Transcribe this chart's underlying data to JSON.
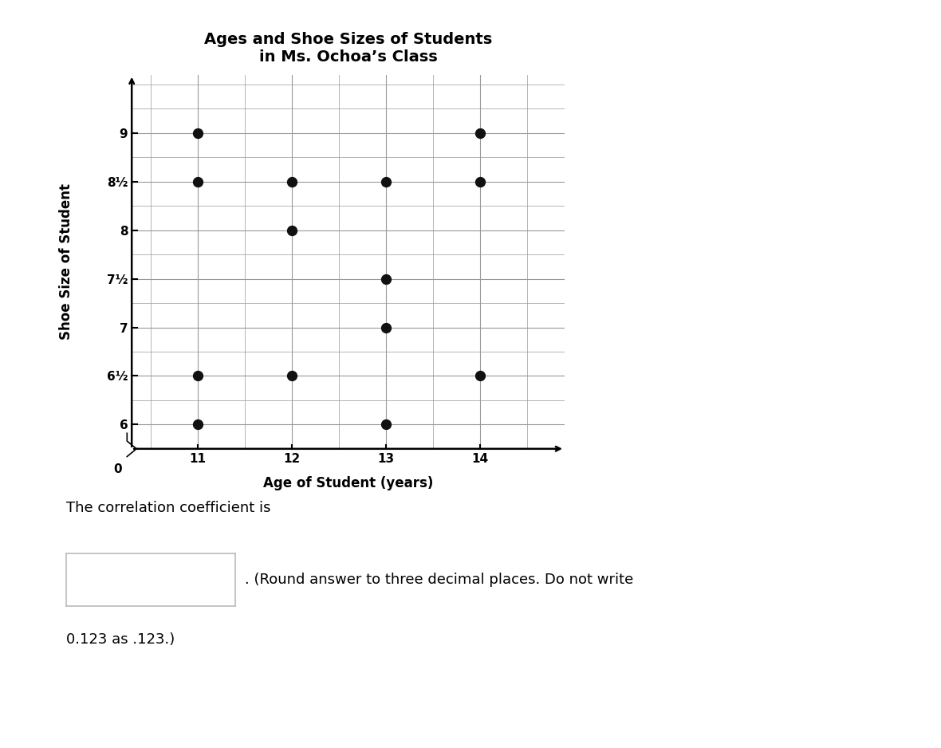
{
  "title_line1": "Ages and Shoe Sizes of Students",
  "title_line2": "in Ms. Ochoa’s Class",
  "xlabel": "Age of Student (years)",
  "ylabel": "Shoe Size of Student",
  "x_data": [
    11,
    11,
    11,
    11,
    12,
    12,
    12,
    13,
    13,
    13,
    13,
    14,
    14,
    14
  ],
  "y_data": [
    9,
    8.5,
    6.5,
    6,
    8.5,
    8,
    6.5,
    8.5,
    7.5,
    7,
    6,
    9,
    8.5,
    6.5
  ],
  "xlim": [
    10.3,
    14.9
  ],
  "ylim": [
    5.75,
    9.6
  ],
  "xticks": [
    11,
    12,
    13,
    14
  ],
  "yticks": [
    6,
    6.5,
    7,
    7.5,
    8,
    8.5,
    9
  ],
  "ytick_labels": [
    "6",
    "6½",
    "7",
    "7½",
    "8",
    "8½",
    "9"
  ],
  "marker_color": "#111111",
  "marker_size": 7,
  "grid_color": "#999999",
  "background_color": "#ffffff",
  "text_corr": "The correlation coefficient is",
  "text_round": ". (Round answer to three decimal places. Do not write",
  "text_note": "0.123 as .123.)",
  "title_fontsize": 14,
  "label_fontsize": 12,
  "tick_fontsize": 11
}
